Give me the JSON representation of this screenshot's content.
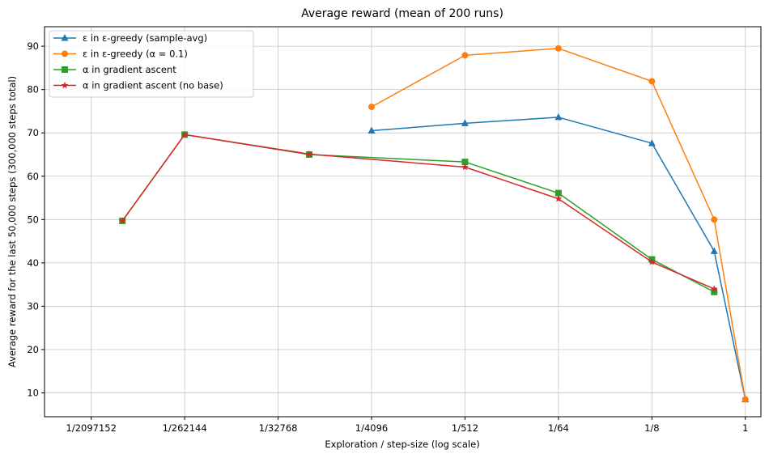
{
  "chart_data": {
    "type": "line",
    "title": "Average reward (mean of 200 runs)",
    "xlabel": "Exploration / step-size (log scale)",
    "ylabel": "Average reward for the last 50,000 steps (300,000 steps total)",
    "x_scale": "log2",
    "xlim_log2": [
      -22.5,
      0.5
    ],
    "ylim": [
      4.5,
      94.5
    ],
    "grid": true,
    "legend_position": "top-left",
    "x_ticks": [
      {
        "log2": -21,
        "label": "1/2097152"
      },
      {
        "log2": -18,
        "label": "1/262144"
      },
      {
        "log2": -15,
        "label": "1/32768"
      },
      {
        "log2": -12,
        "label": "1/4096"
      },
      {
        "log2": -9,
        "label": "1/512"
      },
      {
        "log2": -6,
        "label": "1/64"
      },
      {
        "log2": -3,
        "label": "1/8"
      },
      {
        "log2": 0,
        "label": "1"
      }
    ],
    "y_ticks": [
      10,
      20,
      30,
      40,
      50,
      60,
      70,
      80,
      90
    ],
    "series": [
      {
        "name": "ε in ε-greedy (sample-avg)",
        "color": "#1f77b4",
        "marker": "triangle",
        "points": [
          [
            -12,
            70.5
          ],
          [
            -9,
            72.2
          ],
          [
            -6,
            73.6
          ],
          [
            -3,
            67.6
          ],
          [
            -1,
            42.7
          ],
          [
            0,
            8.5
          ]
        ]
      },
      {
        "name": "ε in ε-greedy (α = 0.1)",
        "color": "#ff7f0e",
        "marker": "circle",
        "points": [
          [
            -12,
            76.0
          ],
          [
            -9,
            87.9
          ],
          [
            -6,
            89.5
          ],
          [
            -3,
            81.9
          ],
          [
            -1,
            50.0
          ],
          [
            0,
            8.5
          ]
        ]
      },
      {
        "name": "α in gradient ascent",
        "color": "#2ca02c",
        "marker": "square",
        "points": [
          [
            -20,
            49.7
          ],
          [
            -18,
            69.6
          ],
          [
            -14,
            65.0
          ],
          [
            -9,
            63.3
          ],
          [
            -6,
            56.1
          ],
          [
            -3,
            40.8
          ],
          [
            -1,
            33.3
          ]
        ]
      },
      {
        "name": "α in gradient ascent (no base)",
        "color": "#d62728",
        "marker": "star",
        "points": [
          [
            -20,
            49.7
          ],
          [
            -18,
            69.6
          ],
          [
            -14,
            65.1
          ],
          [
            -9,
            62.1
          ],
          [
            -6,
            54.8
          ],
          [
            -3,
            40.2
          ],
          [
            -1,
            34.0
          ]
        ]
      }
    ]
  }
}
